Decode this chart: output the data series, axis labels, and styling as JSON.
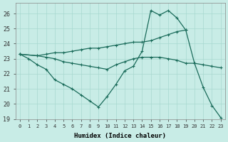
{
  "xlabel": "Humidex (Indice chaleur)",
  "xlim": [
    -0.5,
    23.5
  ],
  "ylim": [
    19,
    26.7
  ],
  "yticks": [
    19,
    20,
    21,
    22,
    23,
    24,
    25,
    26
  ],
  "xticks": [
    0,
    1,
    2,
    3,
    4,
    5,
    6,
    7,
    8,
    9,
    10,
    11,
    12,
    13,
    14,
    15,
    16,
    17,
    18,
    19,
    20,
    21,
    22,
    23
  ],
  "bg_color": "#c8ece6",
  "grid_color": "#a8d8d0",
  "line_color": "#1a6b5a",
  "line1_x": [
    0,
    1,
    2,
    3,
    4,
    5,
    6,
    7,
    8,
    9,
    10,
    11,
    12,
    13,
    14,
    15,
    16,
    17,
    18,
    19,
    20,
    21,
    22,
    23
  ],
  "line1_y": [
    23.3,
    23.0,
    22.6,
    22.3,
    21.6,
    21.3,
    21.0,
    20.6,
    20.2,
    19.8,
    20.5,
    21.3,
    22.2,
    22.5,
    23.5,
    26.2,
    25.9,
    26.2,
    25.7,
    24.9,
    22.7,
    21.1,
    19.9,
    19.1
  ],
  "line2_x": [
    0,
    2,
    3,
    4,
    5,
    6,
    7,
    8,
    9,
    10,
    11,
    12,
    13,
    14,
    15,
    16,
    17,
    18,
    19
  ],
  "line2_y": [
    23.3,
    23.2,
    23.3,
    23.4,
    23.4,
    23.5,
    23.6,
    23.7,
    23.7,
    23.8,
    23.9,
    24.0,
    24.1,
    24.1,
    24.2,
    24.4,
    24.6,
    24.8,
    24.9
  ],
  "line3_x": [
    0,
    2,
    3,
    4,
    5,
    6,
    7,
    8,
    9,
    10,
    11,
    12,
    13,
    14,
    15,
    16,
    17,
    18,
    19,
    20,
    21,
    22,
    23
  ],
  "line3_y": [
    23.3,
    23.2,
    23.1,
    23.0,
    22.8,
    22.7,
    22.6,
    22.5,
    22.4,
    22.3,
    22.6,
    22.8,
    23.0,
    23.1,
    23.1,
    23.1,
    23.0,
    22.9,
    22.7,
    22.7,
    22.6,
    22.5,
    22.4
  ]
}
